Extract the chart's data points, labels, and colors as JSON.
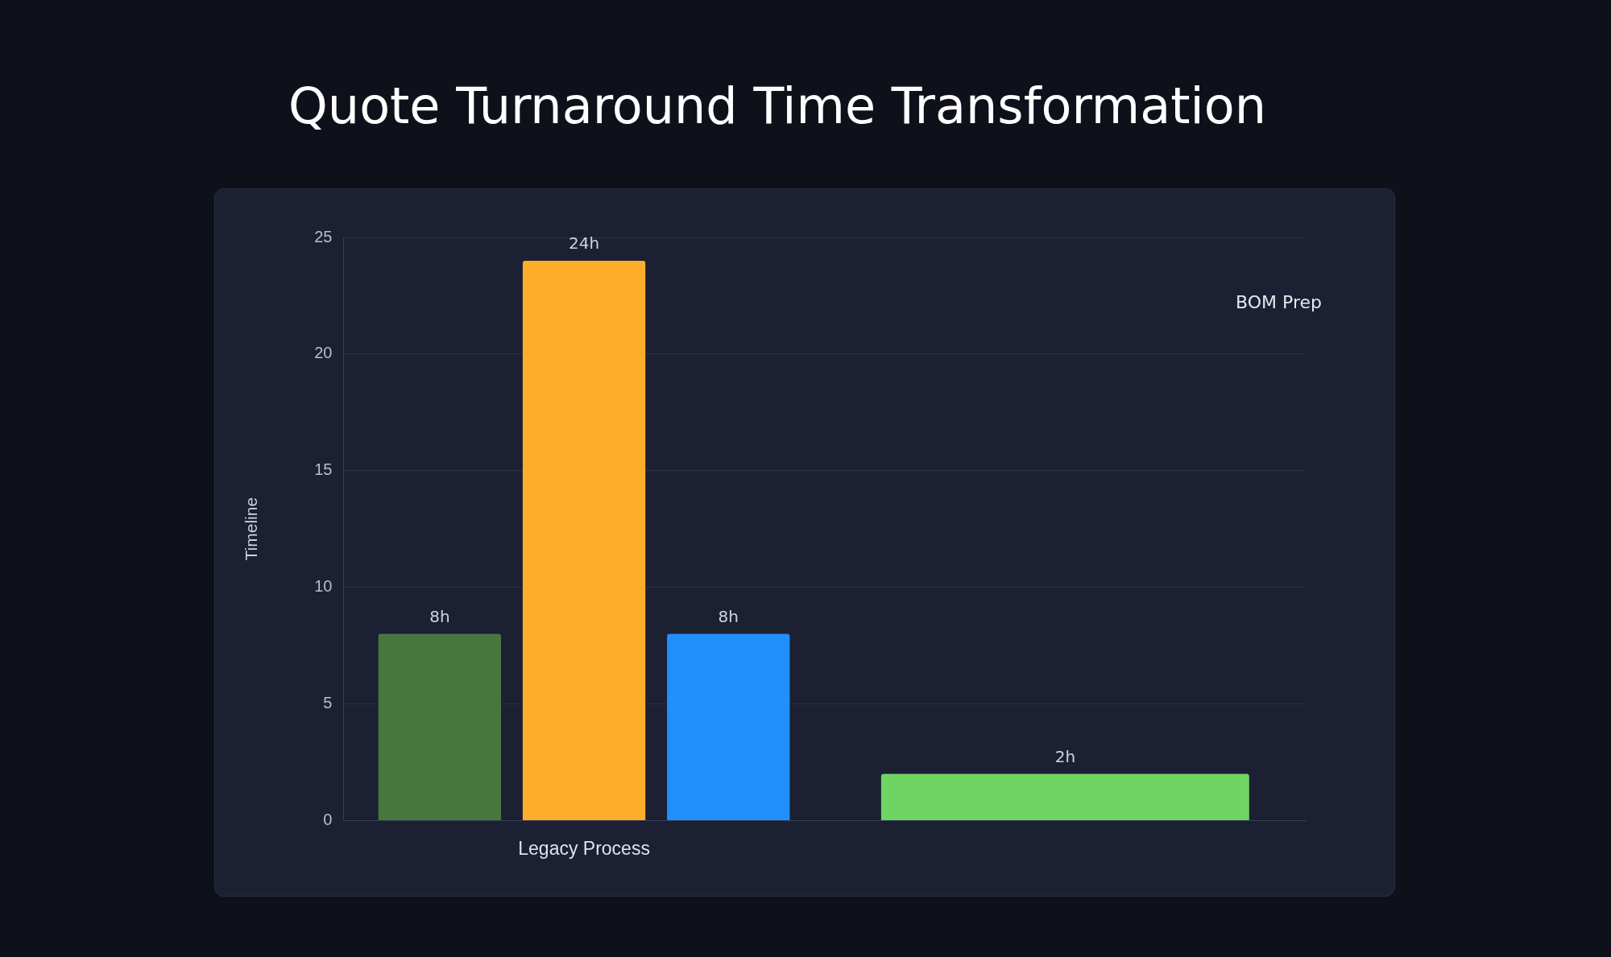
{
  "chart_data": {
    "type": "bar",
    "title": "Quote Turnaround Time Transformation",
    "ylabel": "Timeline",
    "categories": [
      "Legacy Process",
      null
    ],
    "series": [
      {
        "color": "#48763f",
        "values": [
          8,
          null
        ],
        "value_labels": [
          "8h",
          null
        ]
      },
      {
        "color": "#fcae2a",
        "values": [
          24,
          null
        ],
        "value_labels": [
          "24h",
          null
        ]
      },
      {
        "color": "#2190fc",
        "values": [
          8,
          null
        ],
        "value_labels": [
          "8h",
          null
        ]
      },
      {
        "color": "#70d463",
        "values": [
          null,
          2
        ],
        "value_labels": [
          null,
          "2h"
        ]
      }
    ],
    "ylim": [
      0,
      25
    ],
    "yticks": [
      0,
      5,
      10,
      15,
      20,
      25
    ],
    "grid": "y",
    "annotations": [
      "BOM Prep"
    ]
  }
}
